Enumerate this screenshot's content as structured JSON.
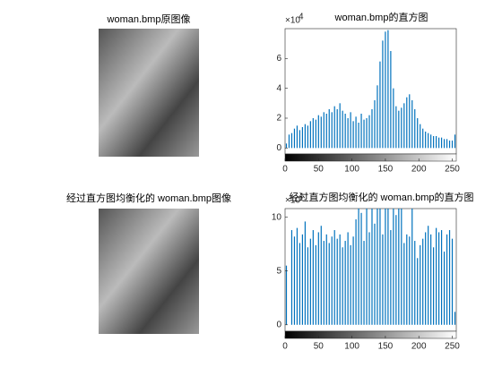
{
  "chart_data": [
    {
      "type": "image",
      "title": "woman.bmp原图像"
    },
    {
      "type": "histogram",
      "title": "woman.bmp的直方图",
      "y_multiplier": "×10",
      "y_exponent": "4",
      "bins": [
        0,
        4,
        8,
        12,
        16,
        20,
        24,
        28,
        32,
        36,
        40,
        44,
        48,
        52,
        56,
        60,
        64,
        68,
        72,
        76,
        80,
        84,
        88,
        92,
        96,
        100,
        104,
        108,
        112,
        116,
        120,
        124,
        128,
        132,
        136,
        140,
        144,
        148,
        152,
        156,
        160,
        164,
        168,
        172,
        176,
        180,
        184,
        188,
        192,
        196,
        200,
        204,
        208,
        212,
        216,
        220,
        224,
        228,
        232,
        236,
        240,
        244,
        248,
        252,
        256
      ],
      "counts": [
        0.3,
        0.9,
        1.0,
        1.3,
        1.5,
        1.2,
        1.4,
        1.6,
        1.5,
        1.8,
        2.0,
        1.9,
        2.2,
        2.1,
        2.4,
        2.3,
        2.6,
        2.4,
        2.8,
        2.6,
        3.0,
        2.5,
        2.3,
        2.0,
        2.4,
        1.8,
        2.1,
        1.7,
        2.3,
        1.9,
        2.0,
        2.2,
        2.6,
        3.2,
        4.2,
        5.8,
        7.2,
        7.8,
        7.9,
        6.5,
        4.0,
        2.8,
        2.5,
        2.7,
        3.0,
        3.4,
        3.6,
        3.2,
        2.6,
        2.0,
        1.6,
        1.3,
        1.1,
        1.0,
        0.9,
        0.8,
        0.8,
        0.7,
        0.7,
        0.6,
        0.6,
        0.5,
        0.5,
        0.9
      ],
      "color": "#0072bd",
      "xlim": [
        0,
        256
      ],
      "ylim": [
        -0.4,
        8
      ],
      "xticks": [
        0,
        50,
        100,
        150,
        200,
        250
      ],
      "yticks": [
        0,
        2,
        4,
        6
      ]
    },
    {
      "type": "image",
      "title": "经过直方图均衡化的 woman.bmp图像"
    },
    {
      "type": "histogram",
      "title": "经过直方图均衡化的 woman.bmp的直方图",
      "y_multiplier": "×10",
      "y_exponent": "4",
      "bins": [
        0,
        4,
        8,
        12,
        16,
        20,
        24,
        28,
        32,
        36,
        40,
        44,
        48,
        52,
        56,
        60,
        64,
        68,
        72,
        76,
        80,
        84,
        88,
        92,
        96,
        100,
        104,
        108,
        112,
        116,
        120,
        124,
        128,
        132,
        136,
        140,
        144,
        148,
        152,
        156,
        160,
        164,
        168,
        172,
        176,
        180,
        184,
        188,
        192,
        196,
        200,
        204,
        208,
        212,
        216,
        220,
        224,
        228,
        232,
        236,
        240,
        244,
        248,
        252,
        256
      ],
      "counts": [
        5.5,
        0,
        8.8,
        8.2,
        9.0,
        7.6,
        8.4,
        9.6,
        7.2,
        8.0,
        8.8,
        7.4,
        8.6,
        9.2,
        7.8,
        8.4,
        7.6,
        8.2,
        8.8,
        8.0,
        8.4,
        7.2,
        7.8,
        8.6,
        7.4,
        8.2,
        9.8,
        11.5,
        10.4,
        7.8,
        11.5,
        8.6,
        11.5,
        9.4,
        11.5,
        11.5,
        8.4,
        11.5,
        11.5,
        8.8,
        11.5,
        10.2,
        11.5,
        11.5,
        7.6,
        8.4,
        8.2,
        11.5,
        7.8,
        6.2,
        7.4,
        8.0,
        8.6,
        9.2,
        8.4,
        7.2,
        9.0,
        8.6,
        8.8,
        6.8,
        8.4,
        8.8,
        8.0,
        1.2
      ],
      "color": "#0072bd",
      "xlim": [
        0,
        256
      ],
      "ylim": [
        -0.6,
        10.8
      ],
      "xticks": [
        0,
        50,
        100,
        150,
        200,
        250
      ],
      "yticks": [
        0,
        5,
        10
      ]
    }
  ]
}
